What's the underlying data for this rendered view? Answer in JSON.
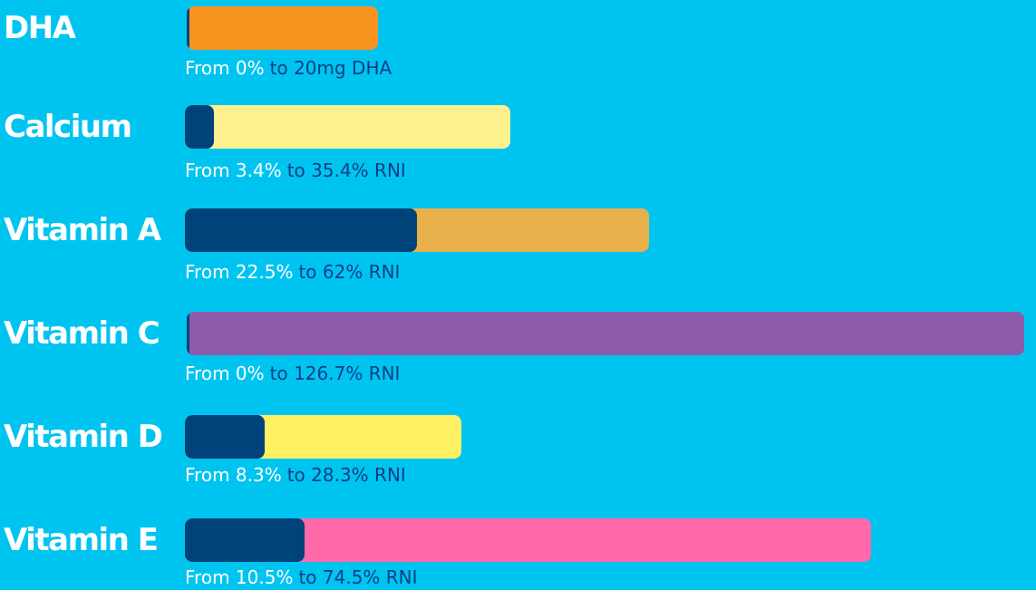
{
  "rows": [
    {
      "name": "DHA",
      "from": "From 0%",
      "to": "to 20mg DHA"
    },
    {
      "name": "Calcium",
      "from": "From 3.4%",
      "to": "to 35.4% RNI"
    },
    {
      "name": "Vitamin A",
      "from": "From 22.5%",
      "to": "to 62% RNI"
    },
    {
      "name": "Vitamin C",
      "from": "From 0%",
      "to": "to 126.7% RNI"
    },
    {
      "name": "Vitamin D",
      "from": "From 8.3%",
      "to": "to 28.3% RNI"
    },
    {
      "name": "Vitamin E",
      "from": "From 10.5%",
      "to": "to 74.5% RNI"
    }
  ]
}
